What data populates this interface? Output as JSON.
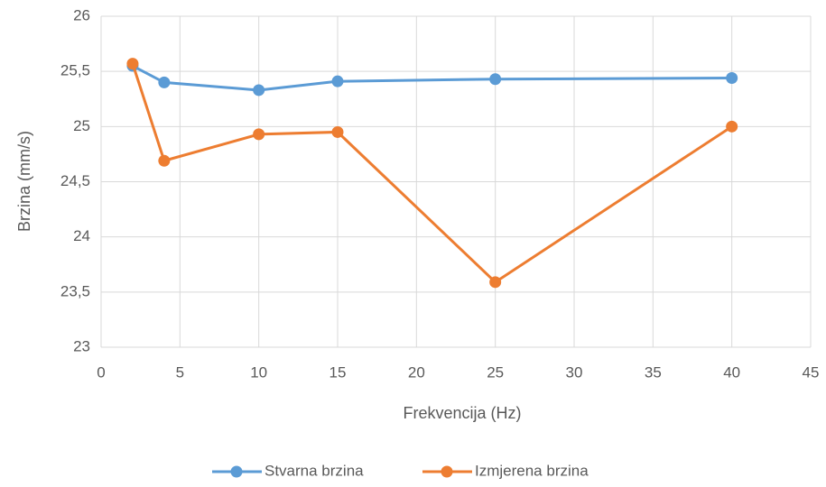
{
  "chart_data": {
    "type": "line",
    "x_label": "Frekvencija (Hz)",
    "y_label": "Brzina (mm/s)",
    "series": [
      {
        "name": "Stvarna brzina",
        "color": "#5b9bd5",
        "x": [
          2,
          4,
          10,
          15,
          25,
          40
        ],
        "values": [
          25.55,
          25.4,
          25.33,
          25.41,
          25.43,
          25.44
        ]
      },
      {
        "name": "Izmjerena brzina",
        "color": "#ed7d31",
        "x": [
          2,
          4,
          10,
          15,
          25,
          40
        ],
        "values": [
          25.57,
          24.69,
          24.93,
          24.95,
          23.59,
          25.0
        ]
      }
    ],
    "xlim": [
      0,
      45
    ],
    "xticks": [
      0,
      5,
      10,
      15,
      20,
      25,
      30,
      35,
      40,
      45
    ],
    "ylim": [
      23,
      26
    ],
    "yticks": [
      23,
      {
        "value": 23.5,
        "label": "23,5"
      },
      24,
      {
        "value": 24.5,
        "label": "24,5"
      },
      25,
      {
        "value": 25.5,
        "label": "25,5"
      },
      26
    ],
    "grid": true,
    "legend": "bottom"
  }
}
